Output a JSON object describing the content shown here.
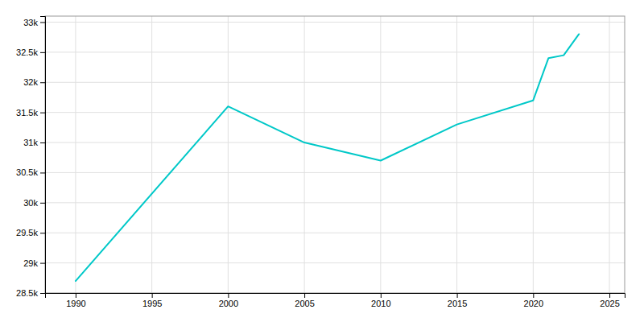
{
  "chart_data": {
    "type": "line",
    "x": [
      1990,
      2000,
      2005,
      2010,
      2015,
      2020,
      2021,
      2022,
      2023
    ],
    "values": [
      28700,
      31600,
      31000,
      30700,
      31300,
      31700,
      32400,
      32450,
      32800
    ],
    "color": "#00C8C8",
    "xlim": [
      1988,
      2026
    ],
    "ylim": [
      28500,
      33100
    ],
    "xticks": [
      1990,
      1995,
      2000,
      2005,
      2010,
      2015,
      2020,
      2025
    ],
    "yticks": [
      {
        "value": 28500,
        "label": "28.5k"
      },
      {
        "value": 29000,
        "label": "29k"
      },
      {
        "value": 29500,
        "label": "29.5k"
      },
      {
        "value": 30000,
        "label": "30k"
      },
      {
        "value": 30500,
        "label": "30.5k"
      },
      {
        "value": 31000,
        "label": "31k"
      },
      {
        "value": 31500,
        "label": "31.5k"
      },
      {
        "value": 32000,
        "label": "32k"
      },
      {
        "value": 32500,
        "label": "32.5k"
      },
      {
        "value": 33000,
        "label": "33k"
      }
    ],
    "grid": true
  }
}
